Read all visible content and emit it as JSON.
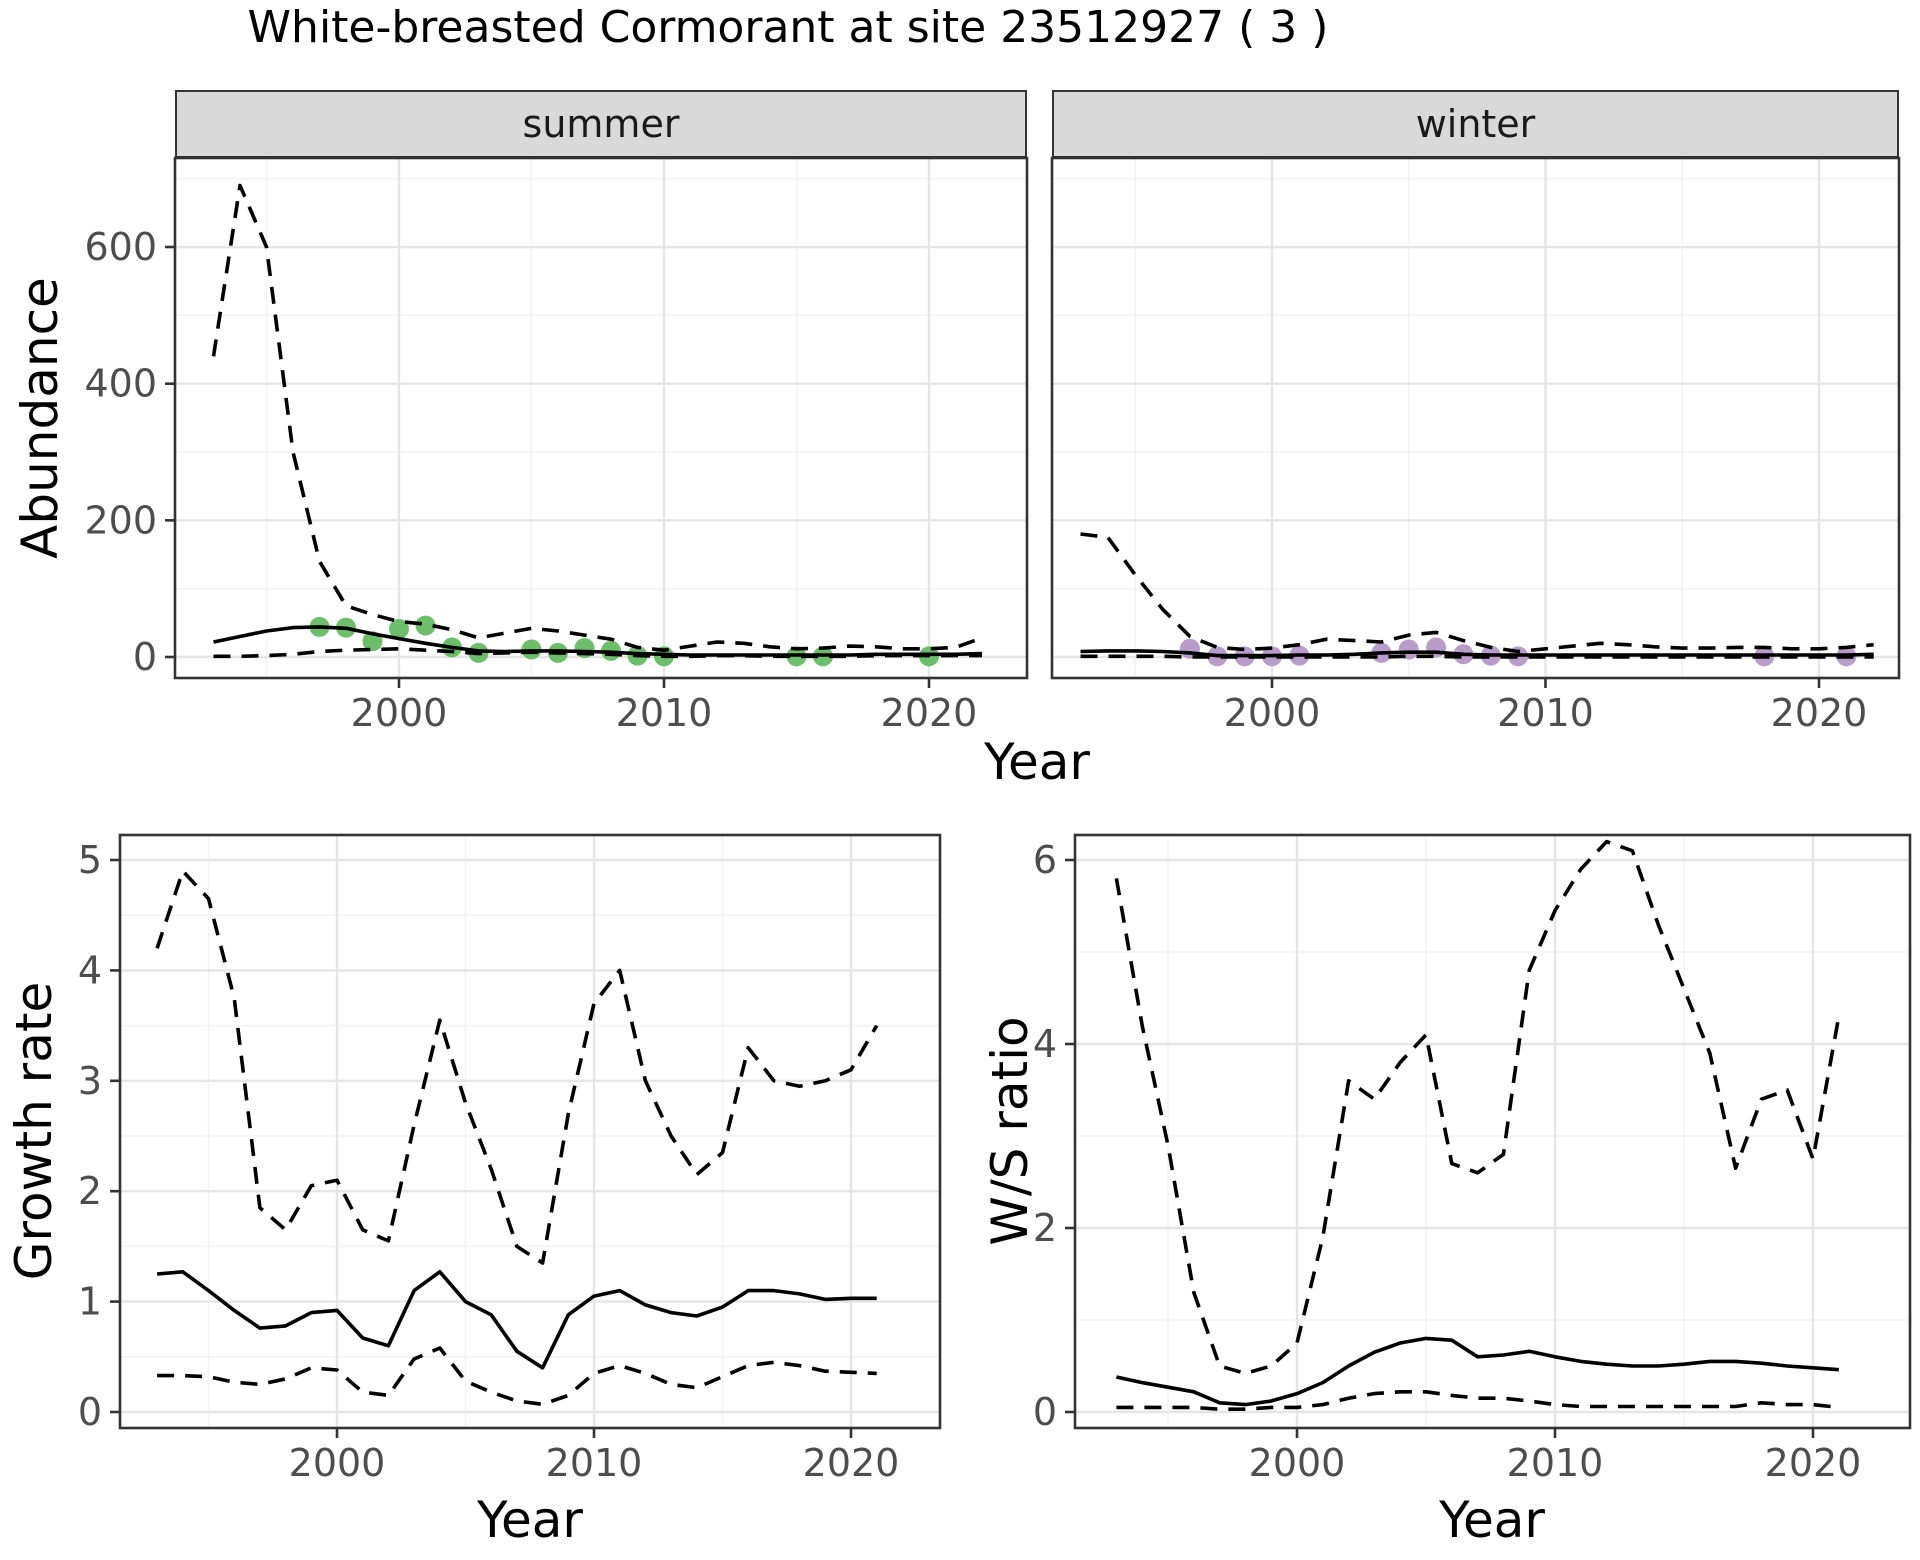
{
  "title": "White-breasted Cormorant at site 23512927 ( 3 )",
  "colors": {
    "summer_points": "#6DBE6A",
    "winter_points": "#B89CCA",
    "median_line": "#000000",
    "ci_line": "#000000",
    "strip_background": "#D9D9D9",
    "panel_border": "#333333",
    "grid_major": "#E5E5E5",
    "grid_minor": "#F3F3F3",
    "tick_label": "#4d4d4d"
  },
  "chart_data": [
    {
      "type": "line",
      "facet": "summer",
      "xlabel": "Year",
      "ylabel": "Abundance",
      "x": [
        1993,
        1994,
        1995,
        1996,
        1997,
        1998,
        1999,
        2000,
        2001,
        2002,
        2003,
        2004,
        2005,
        2006,
        2007,
        2008,
        2009,
        2010,
        2011,
        2012,
        2013,
        2014,
        2015,
        2016,
        2017,
        2018,
        2019,
        2020,
        2021,
        2022
      ],
      "series": [
        {
          "name": "upper_95ci",
          "style": "dashed",
          "values": [
            440,
            690,
            600,
            300,
            140,
            75,
            62,
            52,
            48,
            40,
            28,
            35,
            42,
            38,
            32,
            26,
            14,
            10,
            16,
            22,
            20,
            15,
            12,
            13,
            16,
            15,
            12,
            12,
            14,
            28
          ]
        },
        {
          "name": "lower_95ci",
          "style": "dashed",
          "values": [
            1,
            1,
            2,
            4,
            8,
            10,
            11,
            12,
            10,
            8,
            5,
            6,
            7,
            6,
            5,
            4,
            2,
            1,
            1,
            2,
            2,
            1,
            1,
            1,
            1,
            2,
            2,
            2,
            2,
            2
          ]
        },
        {
          "name": "median",
          "style": "solid",
          "values": [
            22,
            30,
            38,
            43,
            44,
            42,
            34,
            27,
            20,
            14,
            9,
            8,
            9,
            9,
            8,
            7,
            5,
            4,
            3,
            3,
            3,
            3,
            3,
            3,
            3,
            4,
            4,
            4,
            4,
            5
          ]
        }
      ],
      "points": {
        "name": "observed_counts",
        "color": "#6DBE6A",
        "x": [
          1997,
          1998,
          1999,
          2000,
          2001,
          2002,
          2003,
          2005,
          2006,
          2007,
          2008,
          2009,
          2010,
          2015,
          2016,
          2020
        ],
        "y": [
          44,
          43,
          23,
          41,
          46,
          14,
          6,
          11,
          6,
          13,
          9,
          2,
          1,
          1,
          1,
          1
        ]
      },
      "xlim": [
        1991.5,
        2023.7
      ],
      "ylim": [
        -30,
        730
      ],
      "xticks": [
        2000,
        2010,
        2020
      ],
      "yticks": [
        0,
        200,
        400,
        600
      ],
      "minor_xticks": [
        1995,
        2005,
        2015
      ],
      "minor_yticks": [
        100,
        300,
        500,
        700
      ],
      "grid": true,
      "legend": "none"
    },
    {
      "type": "line",
      "facet": "winter",
      "xlabel": "Year",
      "ylabel": "Abundance",
      "x": [
        1993,
        1994,
        1995,
        1996,
        1997,
        1998,
        1999,
        2000,
        2001,
        2002,
        2003,
        2004,
        2005,
        2006,
        2007,
        2008,
        2009,
        2010,
        2011,
        2012,
        2013,
        2014,
        2015,
        2016,
        2017,
        2018,
        2019,
        2020,
        2021,
        2022
      ],
      "series": [
        {
          "name": "upper_95ci",
          "style": "dashed",
          "values": [
            180,
            175,
            120,
            70,
            30,
            14,
            11,
            13,
            18,
            26,
            24,
            22,
            32,
            36,
            24,
            14,
            8,
            12,
            16,
            20,
            18,
            15,
            13,
            13,
            14,
            14,
            12,
            12,
            14,
            18
          ]
        },
        {
          "name": "lower_95ci",
          "style": "dashed",
          "values": [
            1,
            1,
            1,
            1,
            0,
            0,
            0,
            0,
            0,
            0,
            0,
            0,
            1,
            1,
            0,
            0,
            0,
            0,
            0,
            0,
            0,
            0,
            0,
            0,
            0,
            0,
            0,
            0,
            0,
            0
          ]
        },
        {
          "name": "median",
          "style": "solid",
          "values": [
            8,
            9,
            9,
            8,
            6,
            2,
            2,
            2,
            3,
            3,
            4,
            6,
            7,
            7,
            4,
            3,
            3,
            3,
            3,
            3,
            3,
            3,
            3,
            3,
            3,
            3,
            3,
            3,
            3,
            4
          ]
        }
      ],
      "points": {
        "name": "observed_counts",
        "color": "#B89CCA",
        "x": [
          1997,
          1998,
          1999,
          2000,
          2001,
          2004,
          2005,
          2006,
          2007,
          2008,
          2009,
          2018,
          2021
        ],
        "y": [
          12,
          1,
          1,
          1,
          2,
          6,
          11,
          14,
          4,
          2,
          1,
          1,
          1
        ]
      },
      "xlim": [
        1992,
        2023
      ],
      "ylim": [
        -30,
        730
      ],
      "xticks": [
        2000,
        2010,
        2020
      ],
      "yticks": [
        0,
        200,
        400,
        600
      ],
      "minor_xticks": [
        1995,
        2005,
        2015
      ],
      "minor_yticks": [
        100,
        300,
        500,
        700
      ],
      "grid": true,
      "legend": "none"
    },
    {
      "type": "line",
      "xlabel": "Year",
      "ylabel": "Growth rate",
      "x": [
        1993,
        1994,
        1995,
        1996,
        1997,
        1998,
        1999,
        2000,
        2001,
        2002,
        2003,
        2004,
        2005,
        2006,
        2007,
        2008,
        2009,
        2010,
        2011,
        2012,
        2013,
        2014,
        2015,
        2016,
        2017,
        2018,
        2019,
        2020,
        2021
      ],
      "series": [
        {
          "name": "upper_95ci",
          "style": "dashed",
          "values": [
            4.2,
            4.9,
            4.65,
            3.75,
            1.85,
            1.65,
            2.05,
            2.1,
            1.65,
            1.55,
            2.6,
            3.55,
            2.8,
            2.2,
            1.5,
            1.35,
            2.7,
            3.7,
            4.0,
            3.0,
            2.5,
            2.15,
            2.35,
            3.3,
            3.0,
            2.95,
            3.0,
            3.1,
            3.5
          ]
        },
        {
          "name": "lower_95ci",
          "style": "dashed",
          "values": [
            0.33,
            0.33,
            0.32,
            0.27,
            0.25,
            0.3,
            0.4,
            0.38,
            0.18,
            0.15,
            0.48,
            0.58,
            0.28,
            0.18,
            0.1,
            0.07,
            0.15,
            0.35,
            0.42,
            0.35,
            0.25,
            0.22,
            0.32,
            0.42,
            0.45,
            0.42,
            0.37,
            0.36,
            0.35
          ]
        },
        {
          "name": "median",
          "style": "solid",
          "values": [
            1.25,
            1.27,
            1.1,
            0.92,
            0.76,
            0.78,
            0.9,
            0.92,
            0.67,
            0.6,
            1.1,
            1.27,
            1.0,
            0.88,
            0.55,
            0.4,
            0.88,
            1.05,
            1.1,
            0.97,
            0.9,
            0.87,
            0.95,
            1.1,
            1.1,
            1.07,
            1.02,
            1.03,
            1.03
          ]
        }
      ],
      "xlim": [
        1991.6,
        2023.5
      ],
      "ylim": [
        -0.15,
        5.25
      ],
      "xticks": [
        2000,
        2010,
        2020
      ],
      "yticks": [
        0,
        1,
        2,
        3,
        4,
        5
      ],
      "minor_xticks": [
        1995,
        2005,
        2015
      ],
      "minor_yticks": [
        0.5,
        1.5,
        2.5,
        3.5,
        4.5
      ],
      "grid": true,
      "legend": "none"
    },
    {
      "type": "line",
      "xlabel": "Year",
      "ylabel": "W/S ratio",
      "x": [
        1993,
        1994,
        1995,
        1996,
        1997,
        1998,
        1999,
        2000,
        2001,
        2002,
        2003,
        2004,
        2005,
        2006,
        2007,
        2008,
        2009,
        2010,
        2011,
        2012,
        2013,
        2014,
        2015,
        2016,
        2017,
        2018,
        2019,
        2020,
        2021
      ],
      "series": [
        {
          "name": "upper_95ci",
          "style": "dashed",
          "values": [
            5.8,
            4.2,
            2.9,
            1.3,
            0.5,
            0.42,
            0.5,
            0.75,
            1.9,
            3.6,
            3.4,
            3.8,
            4.1,
            2.7,
            2.6,
            2.8,
            4.8,
            5.45,
            5.9,
            6.2,
            6.1,
            5.3,
            4.6,
            3.9,
            2.65,
            3.4,
            3.5,
            2.75,
            4.3
          ]
        },
        {
          "name": "lower_95ci",
          "style": "dashed",
          "values": [
            0.05,
            0.05,
            0.05,
            0.05,
            0.03,
            0.03,
            0.05,
            0.05,
            0.08,
            0.15,
            0.2,
            0.22,
            0.22,
            0.18,
            0.15,
            0.15,
            0.12,
            0.08,
            0.06,
            0.06,
            0.06,
            0.06,
            0.06,
            0.06,
            0.06,
            0.1,
            0.08,
            0.08,
            0.05
          ]
        },
        {
          "name": "median",
          "style": "solid",
          "values": [
            0.38,
            0.32,
            0.27,
            0.22,
            0.1,
            0.08,
            0.12,
            0.2,
            0.32,
            0.5,
            0.65,
            0.75,
            0.8,
            0.78,
            0.6,
            0.62,
            0.66,
            0.6,
            0.55,
            0.52,
            0.5,
            0.5,
            0.52,
            0.55,
            0.55,
            0.53,
            0.5,
            0.48,
            0.46
          ]
        }
      ],
      "xlim": [
        1991.4,
        2023.8
      ],
      "ylim": [
        -0.17,
        6.27
      ],
      "xticks": [
        2000,
        2010,
        2020
      ],
      "yticks": [
        0,
        2,
        4,
        6
      ],
      "minor_xticks": [
        1995,
        2005,
        2015
      ],
      "minor_yticks": [
        1,
        3,
        5
      ],
      "grid": true,
      "legend": "none"
    }
  ]
}
